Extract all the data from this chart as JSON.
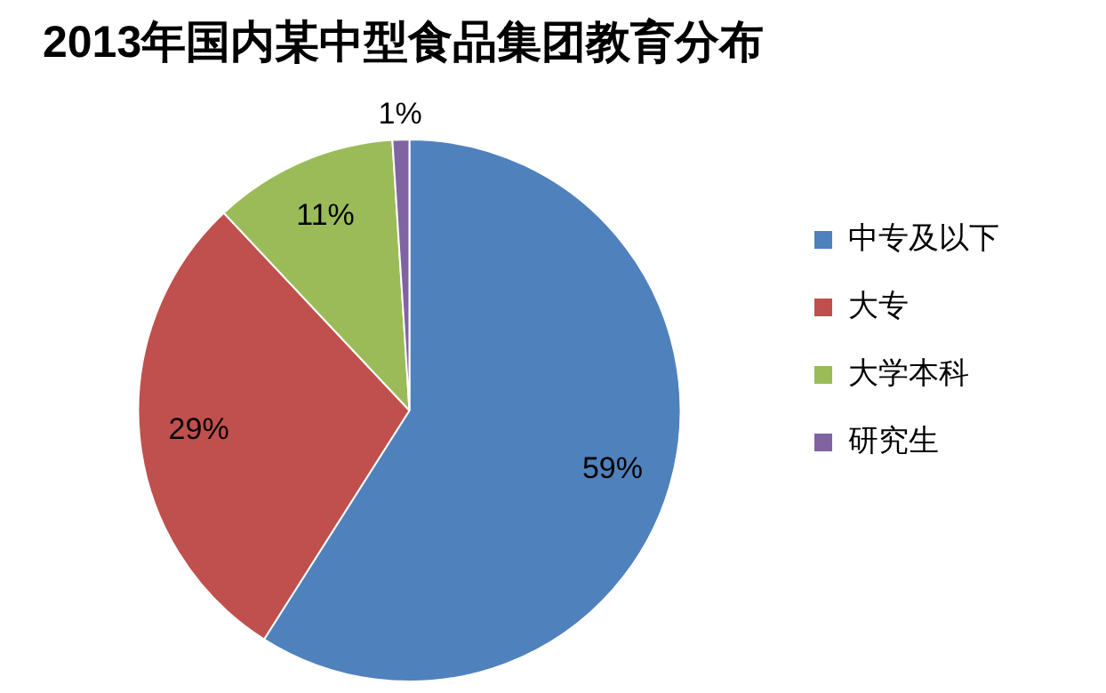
{
  "chart_data": {
    "type": "pie",
    "title": "2013年国内某中型食品集团教育分布",
    "categories": [
      "中专及以下",
      "大专",
      "大学本科",
      "研究生"
    ],
    "values": [
      59,
      29,
      11,
      1
    ],
    "colors": [
      "#4f81bd",
      "#c0504d",
      "#9bbb59",
      "#8064a2"
    ],
    "value_labels": [
      "59%",
      "29%",
      "11%",
      "1%"
    ],
    "legend": "right"
  }
}
